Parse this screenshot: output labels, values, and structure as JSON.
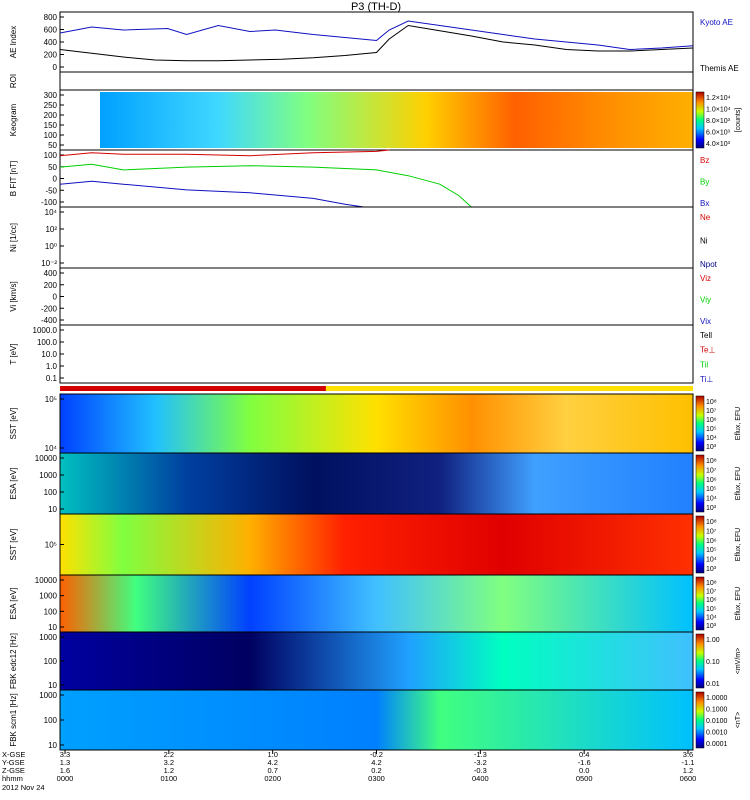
{
  "chart_data": {
    "type": "line",
    "title": "P3 (TH-D)",
    "colors": {
      "red": "#d40000",
      "green": "#00d000",
      "blue": "#1010c0",
      "black": "#000000",
      "yellow": "#ffe000",
      "navy": "#000080"
    },
    "panels": [
      {
        "id": "ae",
        "ylabel": "AE Index",
        "yticks": [
          "800",
          "600",
          "400",
          "200",
          "0"
        ],
        "legend": [
          "Kyoto AE",
          "Themis AE"
        ],
        "series": [
          {
            "name": "Kyoto AE",
            "color": "blue",
            "points": [
              [
                0,
                520
              ],
              [
                0.05,
                600
              ],
              [
                0.1,
                560
              ],
              [
                0.17,
                580
              ],
              [
                0.2,
                500
              ],
              [
                0.25,
                620
              ],
              [
                0.3,
                540
              ],
              [
                0.34,
                560
              ],
              [
                0.4,
                500
              ],
              [
                0.45,
                460
              ],
              [
                0.5,
                420
              ],
              [
                0.52,
                560
              ],
              [
                0.55,
                680
              ],
              [
                0.6,
                620
              ],
              [
                0.65,
                560
              ],
              [
                0.7,
                500
              ],
              [
                0.75,
                440
              ],
              [
                0.8,
                400
              ],
              [
                0.85,
                360
              ],
              [
                0.9,
                300
              ],
              [
                0.95,
                320
              ],
              [
                1.0,
                350
              ]
            ]
          },
          {
            "name": "Themis AE",
            "color": "black",
            "points": [
              [
                0,
                300
              ],
              [
                0.05,
                250
              ],
              [
                0.1,
                200
              ],
              [
                0.15,
                160
              ],
              [
                0.2,
                150
              ],
              [
                0.25,
                150
              ],
              [
                0.3,
                160
              ],
              [
                0.35,
                170
              ],
              [
                0.4,
                190
              ],
              [
                0.45,
                220
              ],
              [
                0.5,
                260
              ],
              [
                0.52,
                440
              ],
              [
                0.55,
                620
              ],
              [
                0.6,
                550
              ],
              [
                0.65,
                480
              ],
              [
                0.7,
                400
              ],
              [
                0.75,
                360
              ],
              [
                0.8,
                300
              ],
              [
                0.85,
                280
              ],
              [
                0.9,
                280
              ],
              [
                0.95,
                300
              ],
              [
                1.0,
                320
              ]
            ]
          }
        ]
      },
      {
        "id": "roi",
        "ylabel": "ROI"
      },
      {
        "id": "keogram",
        "ylabel": "Keogram",
        "yticks": [
          "300",
          "250",
          "200",
          "150",
          "100",
          "50"
        ],
        "colorbar_ticks": [
          "1.2×10⁴",
          "1.0×10⁴",
          "8.0×10³",
          "6.0×10³",
          "4.0×10³"
        ],
        "colorbar_label": "[counts]"
      },
      {
        "id": "bfield",
        "ylabel": "B FIT [nT]",
        "yticks": [
          "100",
          "50",
          "0",
          "-50",
          "-100"
        ],
        "legend": [
          "Bz",
          "By",
          "Bx"
        ],
        "series": [
          {
            "name": "Bz",
            "color": "red",
            "points": [
              [
                0,
                80
              ],
              [
                0.05,
                90
              ],
              [
                0.1,
                85
              ],
              [
                0.2,
                85
              ],
              [
                0.3,
                80
              ],
              [
                0.4,
                90
              ],
              [
                0.5,
                95
              ],
              [
                0.52,
                100
              ]
            ]
          },
          {
            "name": "By",
            "color": "green",
            "points": [
              [
                0,
                40
              ],
              [
                0.05,
                50
              ],
              [
                0.1,
                30
              ],
              [
                0.2,
                40
              ],
              [
                0.3,
                45
              ],
              [
                0.4,
                40
              ],
              [
                0.5,
                30
              ],
              [
                0.55,
                10
              ],
              [
                0.6,
                -20
              ],
              [
                0.63,
                -60
              ],
              [
                0.65,
                -100
              ]
            ]
          },
          {
            "name": "Bx",
            "color": "blue",
            "points": [
              [
                0,
                -20
              ],
              [
                0.05,
                -10
              ],
              [
                0.1,
                -20
              ],
              [
                0.2,
                -40
              ],
              [
                0.3,
                -50
              ],
              [
                0.4,
                -70
              ],
              [
                0.45,
                -90
              ],
              [
                0.48,
                -100
              ]
            ]
          }
        ]
      },
      {
        "id": "density",
        "ylabel": "Ni [1/cc]",
        "yticks": [
          "10⁴",
          "10²",
          "10⁰",
          "10⁻²"
        ],
        "legend": [
          "Ne",
          "Ni",
          "Npot"
        ]
      },
      {
        "id": "velocity",
        "ylabel": "Vi [km/s]",
        "yticks": [
          "400",
          "200",
          "0",
          "-200",
          "-400"
        ],
        "legend": [
          "Viz",
          "Viy",
          "Vix"
        ]
      },
      {
        "id": "temperature",
        "ylabel": "T [eV]",
        "yticks": [
          "1000.0",
          "100.0",
          "10.0",
          "1.0",
          "0.1"
        ],
        "legend": [
          "Tell",
          "Te⊥",
          "Til",
          "Ti⊥"
        ]
      },
      {
        "id": "sst_e",
        "ylabel": "SST [eV]",
        "yticks": [
          "10⁵",
          "10⁴"
        ],
        "colorbar_ticks": [
          "10⁸",
          "10⁷",
          "10⁶",
          "10⁵",
          "10⁴",
          "10³"
        ],
        "colorbar_label": "Eflux, EFU"
      },
      {
        "id": "esa_e",
        "ylabel": "ESA [eV]",
        "yticks": [
          "10000",
          "1000",
          "100",
          "10"
        ],
        "colorbar_ticks": [
          "10⁸",
          "10⁷",
          "10⁶",
          "10⁵",
          "10⁴",
          "10³"
        ],
        "colorbar_label": "Eflux, EFU"
      },
      {
        "id": "sst_i",
        "ylabel": "SST [eV]",
        "yticks": [
          "10⁵"
        ],
        "colorbar_ticks": [
          "10⁸",
          "10⁷",
          "10⁶",
          "10⁵",
          "10⁴",
          "10³"
        ],
        "colorbar_label": "Eflux, EFU"
      },
      {
        "id": "esa_i",
        "ylabel": "ESA [eV]",
        "yticks": [
          "10000",
          "1000",
          "100",
          "10"
        ],
        "colorbar_ticks": [
          "10⁸",
          "10⁷",
          "10⁶",
          "10⁵",
          "10⁴",
          "10³"
        ],
        "colorbar_label": "Eflux, EFU"
      },
      {
        "id": "fbk_edc",
        "ylabel": "FBK edc12 [Hz]",
        "yticks": [
          "1000",
          "100",
          "10"
        ],
        "colorbar_ticks": [
          "1.00",
          "0.10",
          "0.01"
        ],
        "colorbar_label": "<mV/m>"
      },
      {
        "id": "fbk_scm",
        "ylabel": "FBK scm1 [Hz]",
        "yticks": [
          "1000",
          "100",
          "10"
        ],
        "colorbar_ticks": [
          "1.0000",
          "0.1000",
          "0.0100",
          "0.0010",
          "0.0001"
        ],
        "colorbar_label": "<nT>"
      }
    ],
    "x_axis": {
      "row_labels": [
        "X-GSE",
        "Y-GSE",
        "Z-GSE",
        "hhmm",
        "2012 Nov 24"
      ],
      "ticks": [
        {
          "x": "3.3",
          "y": "1.3",
          "z": "1.6",
          "t": "0000"
        },
        {
          "x": "2.2",
          "y": "3.2",
          "z": "1.2",
          "t": "0100"
        },
        {
          "x": "1.0",
          "y": "4.2",
          "z": "0.7",
          "t": "0200"
        },
        {
          "x": "-0.2",
          "y": "4.2",
          "z": "0.2",
          "t": "0300"
        },
        {
          "x": "-1.3",
          "y": "-3.2",
          "z": "-0.3",
          "t": "0400"
        },
        {
          "x": "0.4",
          "y": "-1.6",
          "z": "0.0",
          "t": "0500"
        },
        {
          "x": "3.6",
          "y": "-1.1",
          "z": "1.2",
          "t": "0600"
        }
      ]
    }
  }
}
